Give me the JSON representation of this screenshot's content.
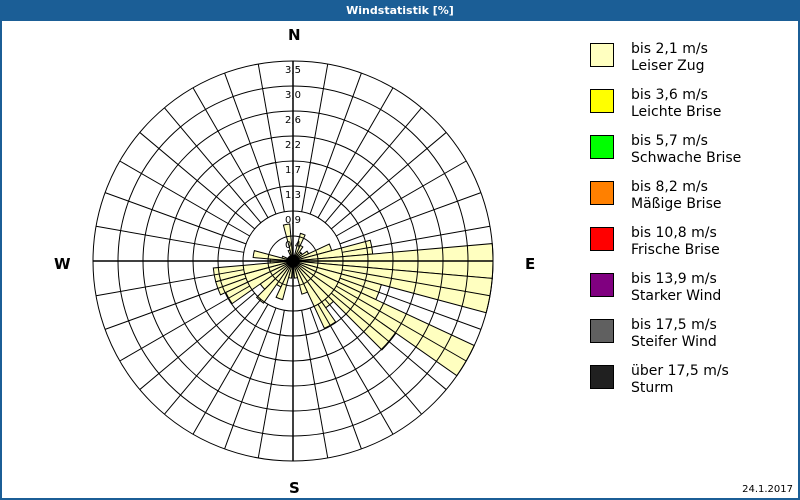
{
  "window": {
    "title": "Windstatistik [%]",
    "date": "24.1.2017"
  },
  "compass": {
    "n": "N",
    "e": "E",
    "s": "S",
    "w": "W"
  },
  "legend": [
    {
      "range": "bis 2,1 m/s",
      "name": "Leiser Zug",
      "color": "#ffffc0"
    },
    {
      "range": "bis 3,6 m/s",
      "name": "Leichte Brise",
      "color": "#ffff00"
    },
    {
      "range": "bis 5,7 m/s",
      "name": "Schwache Brise",
      "color": "#00ff00"
    },
    {
      "range": "bis 8,2 m/s",
      "name": "Mäßige Brise",
      "color": "#ff8000"
    },
    {
      "range": "bis 10,8 m/s",
      "name": "Frische Brise",
      "color": "#ff0000"
    },
    {
      "range": "bis 13,9 m/s",
      "name": "Starker Wind",
      "color": "#800080"
    },
    {
      "range": "bis 17,5 m/s",
      "name": "Steifer Wind",
      "color": "#606060"
    },
    {
      "range": "über 17,5 m/s",
      "name": "Sturm",
      "color": "#202020"
    }
  ],
  "chart_data": {
    "type": "polar-bar",
    "title": "Windstatistik [%]",
    "radial_ticks": [
      "0,4",
      "0,9",
      "1,3",
      "1,7",
      "2,2",
      "2,6",
      "3,0",
      "3,5"
    ],
    "rmax": 3.5,
    "sector_width_deg": 10,
    "directions_deg": [
      0,
      10,
      20,
      30,
      40,
      50,
      60,
      70,
      80,
      90,
      100,
      110,
      120,
      130,
      140,
      150,
      160,
      170,
      180,
      190,
      200,
      210,
      220,
      230,
      240,
      250,
      260,
      270,
      280,
      290,
      300,
      310,
      320,
      330,
      340,
      350
    ],
    "series": [
      {
        "name": "bis 2,1 m/s Leiser Zug",
        "color": "#ffffc0",
        "values": [
          0.1,
          0.1,
          0.5,
          0.3,
          0.2,
          0.2,
          0.3,
          0.7,
          1.4,
          3.5,
          3.5,
          1.6,
          3.5,
          2.2,
          1.0,
          1.3,
          0.6,
          0.3,
          0.2,
          0.3,
          0.7,
          0.5,
          0.9,
          0.7,
          1.3,
          1.4,
          1.4,
          0.4,
          0.7,
          0.2,
          0.1,
          0.1,
          0.1,
          0.1,
          0.2,
          0.65
        ]
      }
    ],
    "legend_position": "right"
  }
}
